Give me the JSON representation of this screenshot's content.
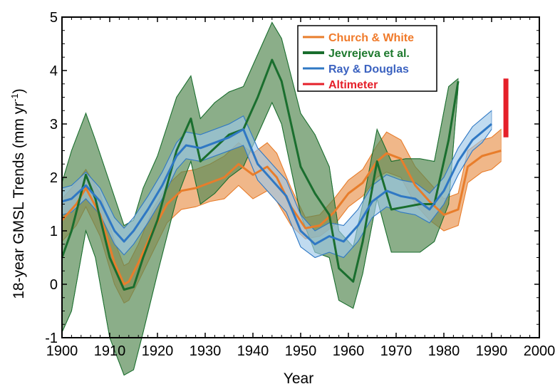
{
  "chart_data": {
    "type": "line",
    "xlabel": "Year",
    "ylabel": "18-year GMSL Trends (mm yr",
    "ylabel_sup": "-1",
    "ylabel_close": ")",
    "xlim": [
      1900,
      2000
    ],
    "ylim": [
      -1,
      5
    ],
    "xticks": [
      1900,
      1910,
      1920,
      1930,
      1940,
      1950,
      1960,
      1970,
      1980,
      1990,
      2000
    ],
    "yticks": [
      -1,
      0,
      1,
      2,
      3,
      4,
      5
    ],
    "grid": false,
    "legend_position": "top-right",
    "series": [
      {
        "name": "Church & White",
        "color": "#e87d2b",
        "band_color": "#e8914a",
        "x": [
          1900,
          1903,
          1905,
          1908,
          1911,
          1913,
          1914,
          1916,
          1919,
          1922,
          1925,
          1928,
          1931,
          1934,
          1937,
          1940,
          1943,
          1945,
          1948,
          1951,
          1954,
          1957,
          1960,
          1963,
          1966,
          1968,
          1971,
          1974,
          1977,
          1980,
          1983,
          1985,
          1988,
          1990,
          1992
        ],
        "values": [
          1.2,
          1.5,
          1.8,
          1.3,
          0.4,
          0.0,
          0.05,
          0.4,
          1.0,
          1.5,
          1.75,
          1.8,
          1.9,
          2.0,
          2.25,
          2.05,
          2.2,
          2.0,
          1.45,
          1.05,
          1.1,
          1.35,
          1.7,
          1.9,
          2.3,
          2.45,
          2.35,
          1.85,
          1.55,
          1.3,
          1.4,
          2.2,
          2.4,
          2.45,
          2.5
        ],
        "lower": [
          0.8,
          1.1,
          1.45,
          0.9,
          0.0,
          -0.35,
          -0.3,
          0.05,
          0.6,
          1.15,
          1.4,
          1.45,
          1.55,
          1.6,
          1.85,
          1.6,
          1.75,
          1.55,
          1.1,
          0.85,
          0.9,
          1.1,
          1.45,
          1.65,
          2.0,
          2.1,
          2.0,
          1.5,
          1.2,
          1.0,
          1.1,
          1.9,
          2.1,
          2.15,
          2.3
        ],
        "upper": [
          1.6,
          1.9,
          2.15,
          1.7,
          0.8,
          0.35,
          0.4,
          0.75,
          1.4,
          1.85,
          2.1,
          2.15,
          2.25,
          2.4,
          2.65,
          2.45,
          2.65,
          2.45,
          1.8,
          1.25,
          1.3,
          1.6,
          1.95,
          2.15,
          2.6,
          2.85,
          2.7,
          2.2,
          1.9,
          1.6,
          1.7,
          2.5,
          2.7,
          2.75,
          2.9
        ]
      },
      {
        "name": "Jevrejeva et al.",
        "color": "#1a6e2e",
        "band_color": "#5a8b57",
        "x": [
          1900,
          1902,
          1905,
          1907,
          1910,
          1913,
          1915,
          1917,
          1920,
          1924,
          1927,
          1929,
          1932,
          1935,
          1938,
          1941,
          1944,
          1946,
          1950,
          1953,
          1956,
          1958,
          1961,
          1963,
          1966,
          1969,
          1972,
          1975,
          1978,
          1981,
          1983
        ],
        "values": [
          0.5,
          1.0,
          2.05,
          1.6,
          0.5,
          -0.1,
          -0.05,
          0.5,
          1.2,
          2.5,
          3.1,
          2.3,
          2.55,
          2.8,
          2.9,
          3.5,
          4.2,
          3.8,
          2.2,
          1.7,
          1.3,
          0.3,
          0.05,
          0.8,
          2.3,
          1.4,
          1.45,
          1.5,
          1.5,
          2.7,
          3.8
        ],
        "lower": [
          -0.9,
          -0.5,
          1.0,
          0.5,
          -1.0,
          -1.7,
          -1.6,
          -0.9,
          0.2,
          1.6,
          2.3,
          1.5,
          1.7,
          2.0,
          2.2,
          2.8,
          3.4,
          3.0,
          1.3,
          0.6,
          0.5,
          -0.3,
          -0.45,
          0.2,
          1.6,
          0.6,
          0.6,
          0.6,
          0.8,
          1.5,
          3.7
        ],
        "upper": [
          1.9,
          2.5,
          3.2,
          2.7,
          1.9,
          1.1,
          1.2,
          1.8,
          2.4,
          3.5,
          3.9,
          3.1,
          3.4,
          3.6,
          3.7,
          4.3,
          4.9,
          4.6,
          3.2,
          2.8,
          2.2,
          1.0,
          0.7,
          1.5,
          2.9,
          2.3,
          2.35,
          2.35,
          2.3,
          3.7,
          3.85
        ]
      },
      {
        "name": "Ray & Douglas",
        "color": "#2f78c4",
        "band_color": "#9ec8e8",
        "x": [
          1900,
          1902,
          1905,
          1908,
          1911,
          1913,
          1915,
          1918,
          1921,
          1924,
          1926,
          1929,
          1932,
          1935,
          1938,
          1941,
          1944,
          1947,
          1950,
          1953,
          1956,
          1959,
          1962,
          1965,
          1968,
          1971,
          1974,
          1977,
          1980,
          1983,
          1986,
          1988,
          1990
        ],
        "values": [
          1.55,
          1.6,
          1.85,
          1.55,
          1.0,
          0.8,
          1.0,
          1.4,
          1.85,
          2.4,
          2.6,
          2.55,
          2.65,
          2.75,
          2.9,
          2.25,
          1.95,
          1.65,
          1.0,
          0.75,
          0.9,
          0.8,
          1.1,
          1.55,
          1.75,
          1.65,
          1.6,
          1.4,
          1.75,
          2.3,
          2.7,
          2.85,
          3.0
        ],
        "lower": [
          1.3,
          1.35,
          1.6,
          1.3,
          0.75,
          0.55,
          0.75,
          1.15,
          1.6,
          2.15,
          2.35,
          2.3,
          2.4,
          2.5,
          2.6,
          1.95,
          1.65,
          1.35,
          0.7,
          0.5,
          0.6,
          0.5,
          0.8,
          1.25,
          1.45,
          1.35,
          1.3,
          1.15,
          1.5,
          2.05,
          2.5,
          2.65,
          2.9
        ],
        "upper": [
          1.8,
          1.85,
          2.1,
          1.8,
          1.25,
          1.05,
          1.25,
          1.65,
          2.1,
          2.65,
          2.85,
          2.8,
          2.9,
          3.0,
          3.15,
          2.55,
          2.25,
          1.95,
          1.3,
          1.0,
          1.15,
          1.1,
          1.4,
          1.85,
          2.05,
          1.95,
          1.9,
          1.7,
          2.0,
          2.55,
          2.95,
          3.1,
          3.25
        ]
      },
      {
        "name": "Altimeter",
        "color": "#e5202a",
        "x": [
          1993
        ],
        "lower": [
          2.75
        ],
        "upper": [
          3.85
        ]
      }
    ]
  }
}
